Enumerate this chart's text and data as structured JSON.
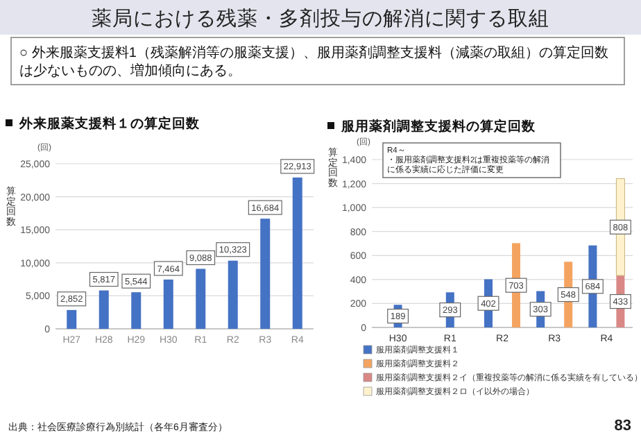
{
  "chart_data": [
    {
      "type": "other",
      "title": "薬局における残薬・多剤投与の解消に関する取組",
      "subtitle": "○ 外来服薬支援料1（残薬解消等の服薬支援）、服用薬剤調整支援料（減薬の取組）の算定回数は少ないものの、増加傾向にある。",
      "annotations": [
        "出典：社会医療診療行為別統計（各年6月審査分）",
        "83"
      ]
    },
    {
      "type": "bar",
      "title": "外来服薬支援料１の算定回数",
      "ylabel": "算定回数",
      "annotations": [
        "(回)"
      ],
      "categories": [
        "H27",
        "H28",
        "H29",
        "H30",
        "R1",
        "R2",
        "R3",
        "R4"
      ],
      "values": [
        2852,
        5817,
        5544,
        7464,
        9088,
        10323,
        16684,
        22913
      ],
      "value_labels": [
        "2,852",
        "5,817",
        "5,544",
        "7,464",
        "9,088",
        "10,323",
        "16,684",
        "22,913"
      ],
      "color": "#4472c4",
      "ylim": [
        0,
        25000
      ],
      "yticks": [
        {
          "value": 0,
          "label": "0"
        },
        {
          "value": 5000,
          "label": "5,000"
        },
        {
          "value": 10000,
          "label": "10,000"
        },
        {
          "value": 15000,
          "label": "15,000"
        },
        {
          "value": 20000,
          "label": "20,000"
        },
        {
          "value": 25000,
          "label": "25,000"
        }
      ],
      "grid": "y"
    },
    {
      "type": "bar",
      "title": "服用薬剤調整支援料の算定回数",
      "ylabel": "算定回数",
      "annotations": [
        "(回)",
        "R4～",
        "・服用薬剤調整支援料2は重複投薬等の解消に係る実績に応じた評価に変更"
      ],
      "categories": [
        "H30",
        "R1",
        "R2",
        "R3",
        "R4"
      ],
      "legend": "bottom",
      "grid": "y",
      "ylim": [
        0,
        1400
      ],
      "yticks": [
        {
          "value": 0,
          "label": "0"
        },
        {
          "value": 200,
          "label": "200"
        },
        {
          "value": 400,
          "label": "400"
        },
        {
          "value": 600,
          "label": "600"
        },
        {
          "value": 800,
          "label": "800"
        },
        {
          "value": 1000,
          "label": "1,000"
        },
        {
          "value": 1200,
          "label": "1,200"
        },
        {
          "value": 1400,
          "label": "1,400"
        }
      ],
      "series": [
        {
          "name": "服用薬剤調整支援料１",
          "color": "#4472c4",
          "values": [
            189,
            293,
            402,
            303,
            684
          ],
          "value_labels": [
            "189",
            "293",
            "402",
            "303",
            "684"
          ]
        },
        {
          "name": "服用薬剤調整支援料２",
          "color": "#f4a460",
          "values": [
            null,
            null,
            703,
            548,
            null
          ],
          "value_labels": [
            null,
            null,
            "703",
            "548",
            null
          ]
        },
        {
          "name": "服用薬剤調整支援料２イ（重複投薬等の解消に係る実績を有している）",
          "color": "#d98886",
          "values": [
            null,
            null,
            null,
            null,
            433
          ],
          "value_labels": [
            null,
            null,
            null,
            null,
            "433"
          ]
        },
        {
          "name": "服用薬剤調整支援料２ロ（イ以外の場合）",
          "color": "#fff2cc",
          "values": [
            null,
            null,
            null,
            null,
            808
          ],
          "base": [
            null,
            null,
            null,
            null,
            433
          ],
          "value_labels": [
            null,
            null,
            null,
            null,
            "808"
          ]
        }
      ]
    }
  ]
}
